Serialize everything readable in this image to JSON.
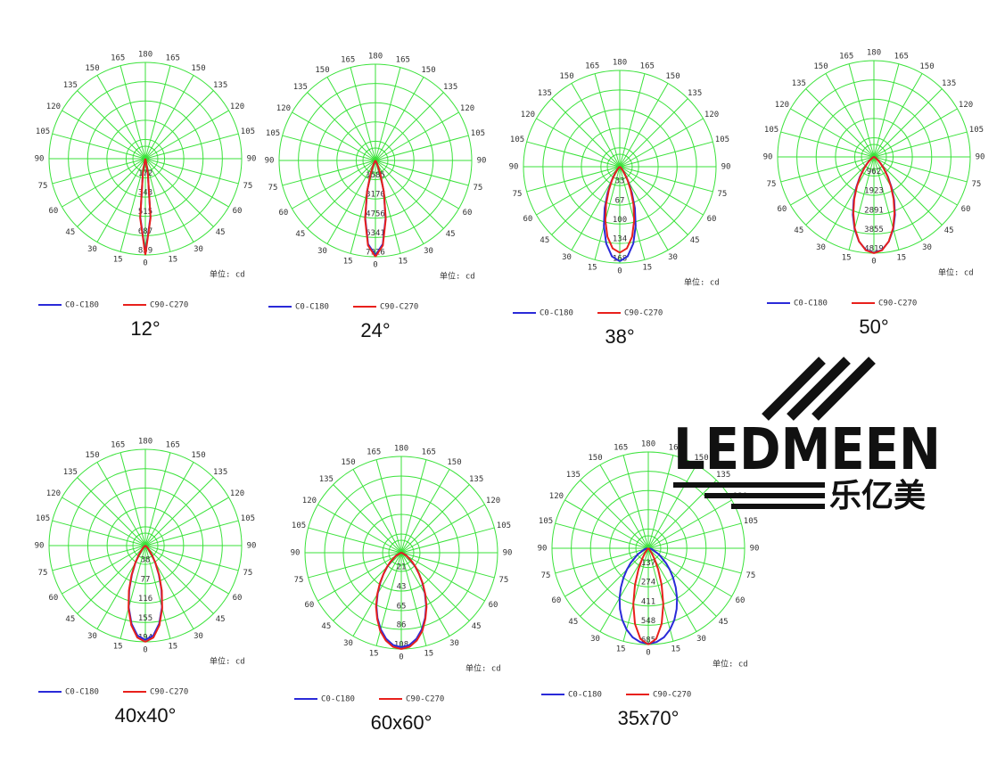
{
  "chart_data": [
    {
      "type": "polar",
      "title": "12°",
      "unit": "单位: cd",
      "rlim": [
        0,
        859
      ],
      "rticks": [
        172,
        343,
        515,
        687,
        859
      ],
      "thetaticks": [
        0,
        15,
        30,
        45,
        60,
        75,
        90,
        105,
        120,
        135,
        150,
        165,
        180
      ],
      "angles": [
        0,
        5,
        10,
        15,
        20,
        25,
        30,
        35,
        40,
        45,
        50,
        60,
        75,
        90
      ],
      "series": [
        {
          "name": "C0-C180",
          "color": "#2a2ad8",
          "values": [
            845,
            522,
            123,
            11,
            0,
            0,
            0,
            0,
            0,
            0,
            0,
            0,
            0,
            0
          ]
        },
        {
          "name": "C90-C270",
          "color": "#e8201c",
          "values": [
            859,
            531,
            125,
            11,
            0,
            0,
            0,
            0,
            0,
            0,
            0,
            0,
            0,
            0
          ]
        }
      ]
    },
    {
      "type": "polar",
      "title": "24°",
      "unit": "单位: cd",
      "rlim": [
        0,
        7926
      ],
      "rticks": [
        1585,
        3170,
        4756,
        6341,
        7926
      ],
      "thetaticks": [
        0,
        15,
        30,
        45,
        60,
        75,
        90,
        105,
        120,
        135,
        150,
        165,
        180
      ],
      "angles": [
        0,
        5,
        10,
        15,
        20,
        25,
        30,
        35,
        40,
        45,
        50,
        60,
        75,
        90
      ],
      "series": [
        {
          "name": "C0-C180",
          "color": "#2a2ad8",
          "values": [
            7800,
            6911,
            4820,
            2644,
            1139,
            382,
            101,
            23,
            0,
            0,
            0,
            0,
            0,
            0
          ]
        },
        {
          "name": "C90-C270",
          "color": "#e8201c",
          "values": [
            7926,
            7022,
            4898,
            2687,
            1157,
            388,
            103,
            24,
            0,
            0,
            0,
            0,
            0,
            0
          ]
        }
      ]
    },
    {
      "type": "polar",
      "title": "38°",
      "unit": "单位: cd",
      "rlim": [
        0,
        168
      ],
      "rticks": [
        33,
        67,
        100,
        134,
        168
      ],
      "thetaticks": [
        0,
        15,
        30,
        45,
        60,
        75,
        90,
        105,
        120,
        135,
        150,
        165,
        180
      ],
      "angles": [
        0,
        5,
        10,
        15,
        20,
        25,
        30,
        35,
        40,
        45,
        50,
        60,
        75,
        90
      ],
      "series": [
        {
          "name": "C0-C180",
          "color": "#2a2ad8",
          "values": [
            165,
            157,
            136,
            107,
            77,
            50,
            29,
            16,
            8,
            3,
            1,
            0,
            0,
            0
          ]
        },
        {
          "name": "C90-C270",
          "color": "#e8201c",
          "values": [
            150,
            143,
            124,
            97,
            70,
            45,
            27,
            14,
            7,
            3,
            1,
            0,
            0,
            0
          ]
        }
      ]
    },
    {
      "type": "polar",
      "title": "50°",
      "unit": "单位: cd",
      "rlim": [
        0,
        4819
      ],
      "rticks": [
        962,
        1923,
        2891,
        3855,
        4819
      ],
      "thetaticks": [
        0,
        15,
        30,
        45,
        60,
        75,
        90,
        105,
        120,
        135,
        150,
        165,
        180
      ],
      "angles": [
        0,
        5,
        10,
        15,
        20,
        25,
        30,
        35,
        40,
        45,
        50,
        60,
        75,
        90
      ],
      "series": [
        {
          "name": "C0-C180",
          "color": "#2a2ad8",
          "values": [
            4800,
            4670,
            4296,
            3739,
            3082,
            2400,
            1766,
            1234,
            816,
            509,
            300,
            86,
            10,
            0
          ]
        },
        {
          "name": "C90-C270",
          "color": "#e8201c",
          "values": [
            4819,
            4689,
            4290,
            3700,
            3010,
            2330,
            1700,
            1180,
            780,
            485,
            285,
            80,
            9,
            0
          ]
        }
      ]
    },
    {
      "type": "polar",
      "title": "40x40°",
      "unit": "单位: cd",
      "rlim": [
        0,
        194
      ],
      "rticks": [
        38,
        77,
        116,
        155,
        194
      ],
      "thetaticks": [
        0,
        15,
        30,
        45,
        60,
        75,
        90,
        105,
        120,
        135,
        150,
        165,
        180
      ],
      "angles": [
        0,
        5,
        10,
        15,
        20,
        25,
        30,
        35,
        40,
        45,
        50,
        60,
        75,
        90
      ],
      "series": [
        {
          "name": "C0-C180",
          "color": "#2a2ad8",
          "values": [
            190,
            182,
            160,
            129,
            95,
            64,
            40,
            23,
            12,
            6,
            2,
            0,
            0,
            0
          ]
        },
        {
          "name": "C90-C270",
          "color": "#e8201c",
          "values": [
            194,
            186,
            163,
            131,
            97,
            66,
            41,
            23,
            12,
            6,
            3,
            0,
            0,
            0
          ]
        }
      ]
    },
    {
      "type": "polar",
      "title": "60x60°",
      "unit": "单位: cd",
      "rlim": [
        0,
        108
      ],
      "rticks": [
        21,
        43,
        65,
        86,
        108
      ],
      "thetaticks": [
        0,
        15,
        30,
        45,
        60,
        75,
        90,
        105,
        120,
        135,
        150,
        165,
        180
      ],
      "angles": [
        0,
        5,
        10,
        15,
        20,
        25,
        30,
        35,
        40,
        45,
        50,
        60,
        75,
        90
      ],
      "series": [
        {
          "name": "C0-C180",
          "color": "#2a2ad8",
          "values": [
            106,
            104,
            98,
            89,
            78,
            66,
            53,
            41,
            31,
            22,
            15,
            7,
            1,
            0
          ]
        },
        {
          "name": "C90-C270",
          "color": "#e8201c",
          "values": [
            108,
            106,
            100,
            91,
            79,
            67,
            54,
            42,
            31,
            23,
            16,
            7,
            1,
            0
          ]
        }
      ]
    },
    {
      "type": "polar",
      "title": "35x70°",
      "unit": "单位: cd",
      "rlim": [
        0,
        685
      ],
      "rticks": [
        137,
        274,
        411,
        548,
        685
      ],
      "thetaticks": [
        0,
        15,
        30,
        45,
        60,
        75,
        90,
        105,
        120,
        135,
        150,
        165,
        180
      ],
      "angles": [
        0,
        5,
        10,
        15,
        20,
        25,
        30,
        35,
        40,
        45,
        50,
        60,
        75,
        90
      ],
      "series": [
        {
          "name": "C0-C180",
          "color": "#2a2ad8",
          "values": [
            680,
            670,
            643,
            598,
            542,
            477,
            409,
            340,
            275,
            216,
            165,
            88,
            28,
            7
          ]
        },
        {
          "name": "C90-C270",
          "color": "#e8201c",
          "values": [
            685,
            647,
            546,
            412,
            277,
            166,
            89,
            43,
            18,
            7,
            3,
            0,
            0,
            0
          ]
        }
      ]
    }
  ],
  "logo": {
    "brand": "LEDMEEN",
    "chinese": "乐亿美"
  }
}
